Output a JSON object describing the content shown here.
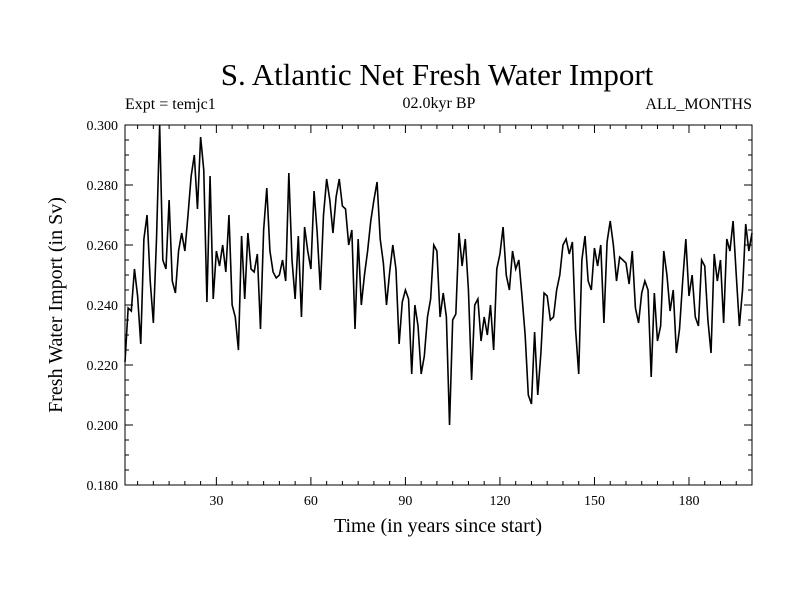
{
  "chart_data": {
    "type": "line",
    "title": "S. Atlantic Net Fresh Water Import",
    "subtitle": "02.0kyr BP",
    "left_label": "Expt = temjc1",
    "right_label": "ALL_MONTHS",
    "xlabel": "Time (in years since start)",
    "ylabel": "Fresh Water Import (in Sv)",
    "xlim": [
      1,
      200
    ],
    "ylim": [
      0.18,
      0.3
    ],
    "x_ticks": [
      30,
      60,
      90,
      120,
      150,
      180
    ],
    "y_ticks": [
      "0.180",
      "0.200",
      "0.220",
      "0.240",
      "0.260",
      "0.280",
      "0.300"
    ],
    "grid": false,
    "series": [
      {
        "name": "S. Atlantic Net Fresh Water Import",
        "color": "#000000",
        "x_start": 1,
        "x_step": 1,
        "values": [
          0.221,
          0.239,
          0.238,
          0.252,
          0.243,
          0.227,
          0.262,
          0.27,
          0.248,
          0.234,
          0.262,
          0.301,
          0.255,
          0.252,
          0.275,
          0.248,
          0.244,
          0.258,
          0.264,
          0.258,
          0.27,
          0.283,
          0.29,
          0.272,
          0.296,
          0.285,
          0.241,
          0.283,
          0.242,
          0.258,
          0.253,
          0.26,
          0.251,
          0.27,
          0.24,
          0.236,
          0.225,
          0.263,
          0.242,
          0.264,
          0.252,
          0.251,
          0.257,
          0.232,
          0.265,
          0.279,
          0.258,
          0.251,
          0.249,
          0.25,
          0.255,
          0.248,
          0.284,
          0.255,
          0.242,
          0.263,
          0.236,
          0.266,
          0.258,
          0.252,
          0.278,
          0.264,
          0.245,
          0.27,
          0.282,
          0.275,
          0.264,
          0.276,
          0.282,
          0.273,
          0.272,
          0.26,
          0.265,
          0.232,
          0.262,
          0.24,
          0.25,
          0.258,
          0.268,
          0.275,
          0.281,
          0.262,
          0.254,
          0.24,
          0.251,
          0.26,
          0.252,
          0.227,
          0.241,
          0.245,
          0.242,
          0.217,
          0.24,
          0.233,
          0.217,
          0.223,
          0.236,
          0.242,
          0.26,
          0.258,
          0.236,
          0.244,
          0.236,
          0.2,
          0.235,
          0.237,
          0.264,
          0.253,
          0.262,
          0.245,
          0.215,
          0.24,
          0.242,
          0.228,
          0.236,
          0.23,
          0.24,
          0.225,
          0.252,
          0.257,
          0.266,
          0.25,
          0.245,
          0.258,
          0.252,
          0.255,
          0.243,
          0.23,
          0.21,
          0.207,
          0.231,
          0.21,
          0.224,
          0.244,
          0.243,
          0.235,
          0.236,
          0.245,
          0.25,
          0.26,
          0.262,
          0.257,
          0.261,
          0.232,
          0.217,
          0.255,
          0.263,
          0.248,
          0.245,
          0.259,
          0.253,
          0.26,
          0.234,
          0.261,
          0.268,
          0.26,
          0.248,
          0.256,
          0.255,
          0.254,
          0.247,
          0.258,
          0.239,
          0.234,
          0.244,
          0.248,
          0.245,
          0.216,
          0.244,
          0.228,
          0.233,
          0.258,
          0.25,
          0.238,
          0.245,
          0.224,
          0.232,
          0.248,
          0.262,
          0.243,
          0.25,
          0.236,
          0.233,
          0.255,
          0.253,
          0.235,
          0.224,
          0.257,
          0.248,
          0.255,
          0.234,
          0.262,
          0.258,
          0.268,
          0.25,
          0.233,
          0.245,
          0.267,
          0.258,
          0.264
        ]
      }
    ]
  }
}
